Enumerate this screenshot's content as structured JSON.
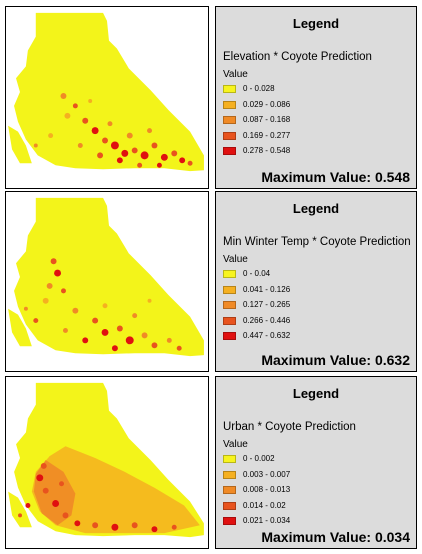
{
  "colors": {
    "class1": "#f7f41f",
    "class2": "#f5b020",
    "class3": "#f08a26",
    "class4": "#e8531e",
    "class5": "#e01010",
    "map_base": "#f3f41a",
    "legend_bg": "#dcdcdc"
  },
  "panels": [
    {
      "legend_title": "Legend",
      "variable": "Elevation * Coyote Prediction",
      "value_label": "Value",
      "classes": [
        "0 - 0.028",
        "0.029 - 0.086",
        "0.087 - 0.168",
        "0.169 - 0.277",
        "0.278 - 0.548"
      ],
      "max_value_label": "Maximum Value: 0.548"
    },
    {
      "legend_title": "Legend",
      "variable": "Min Winter Temp * Coyote Prediction",
      "value_label": "Value",
      "classes": [
        "0 - 0.04",
        "0.041 - 0.126",
        "0.127 - 0.265",
        "0.266 - 0.446",
        "0.447 - 0.632"
      ],
      "max_value_label": "Maximum Value: 0.632"
    },
    {
      "legend_title": "Legend",
      "variable": "Urban * Coyote Prediction",
      "value_label": "Value",
      "classes": [
        "0 - 0.002",
        "0.003 - 0.007",
        "0.008 - 0.013",
        "0.014 - 0.02",
        "0.021 - 0.034"
      ],
      "max_value_label": "Maximum Value: 0.034"
    }
  ]
}
